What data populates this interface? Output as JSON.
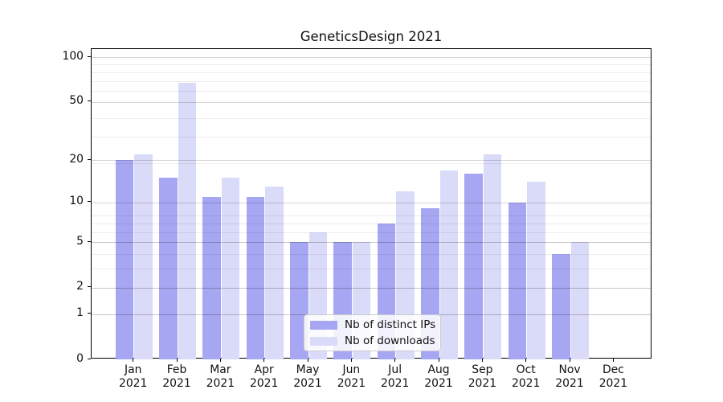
{
  "chart_data": {
    "type": "bar",
    "title": "GeneticsDesign 2021",
    "x": [
      "Jan 2021",
      "Feb 2021",
      "Mar 2021",
      "Apr 2021",
      "May 2021",
      "Jun 2021",
      "Jul 2021",
      "Aug 2021",
      "Sep 2021",
      "Oct 2021",
      "Nov 2021",
      "Dec 2021"
    ],
    "series": [
      {
        "name": "Nb of distinct IPs",
        "color": "#a6a6f2",
        "values": [
          20,
          15,
          11,
          11,
          5,
          5,
          7,
          9,
          16,
          10,
          4,
          0
        ]
      },
      {
        "name": "Nb of downloads",
        "color": "#dadaf9",
        "values": [
          22,
          67,
          15,
          13,
          6,
          5,
          12,
          17,
          22,
          14,
          5,
          0
        ]
      }
    ],
    "xlabel": "",
    "ylabel": "",
    "y_axis": {
      "scale": "log10(1 + value)",
      "tick_values": [
        100,
        50,
        20,
        10,
        5,
        2,
        1,
        0
      ],
      "tick_labels": [
        "100",
        "50",
        "20",
        "10",
        "5",
        "2",
        "1",
        "0"
      ],
      "minor_grid_multipliers": [
        2,
        3,
        4,
        5,
        6,
        7,
        8,
        9,
        20,
        30,
        40,
        60,
        70,
        80,
        90
      ],
      "range": [
        0,
        113
      ]
    },
    "grid": "horizontal",
    "legend_position": "lower center"
  },
  "colors": {
    "background": "#ffffff",
    "spine": "#000000",
    "text": "#111111",
    "major_grid": "rgba(0,0,0,0.16)",
    "minor_grid": "rgba(0,0,0,0.07)",
    "legend_border": "#cccccc",
    "legend_background": "rgba(255,255,255,0.85)"
  }
}
